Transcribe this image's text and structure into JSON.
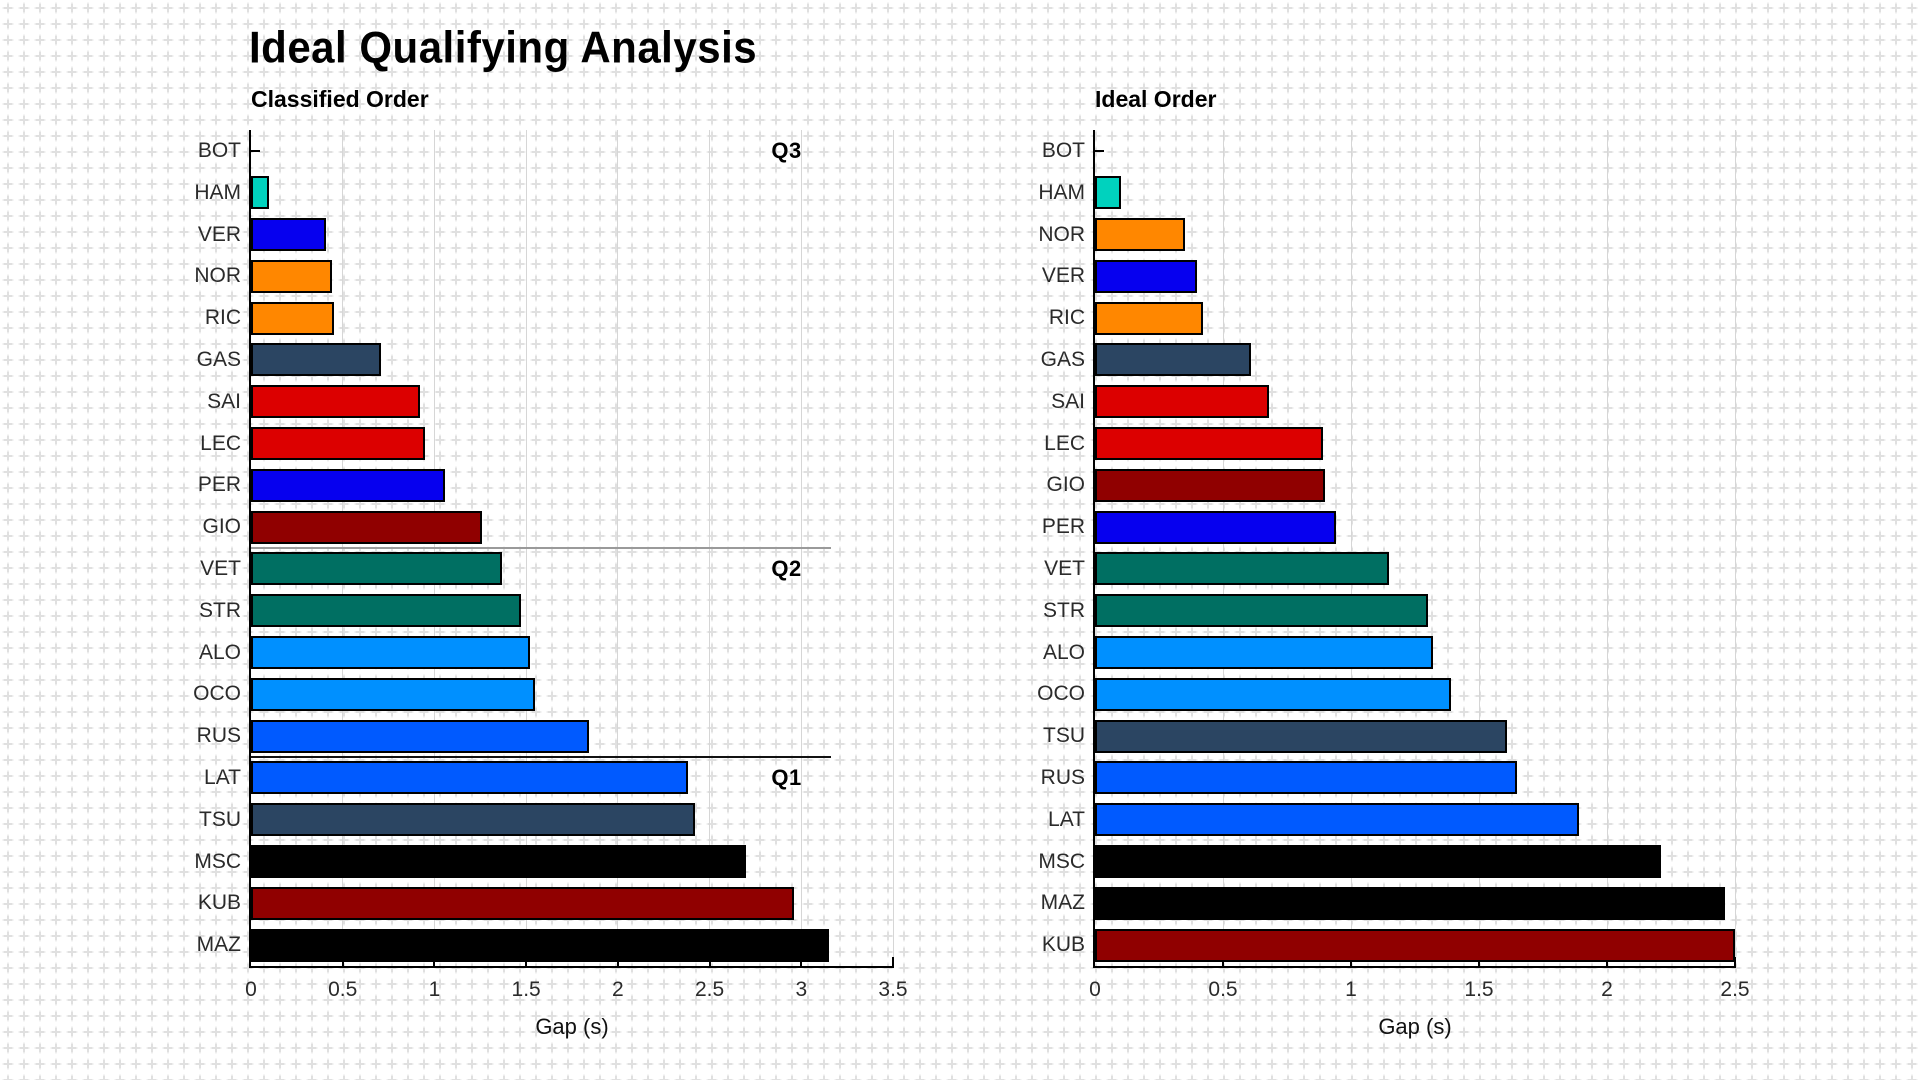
{
  "page": {
    "title": "Ideal Qualifying Analysis",
    "background_grid_color": "#e0e0e0"
  },
  "chart_data": [
    {
      "type": "bar",
      "orientation": "horizontal",
      "title": "Classified Order",
      "xlabel": "Gap (s)",
      "xlim": [
        0,
        3.5
      ],
      "xticks": [
        0,
        0.5,
        1,
        1.5,
        2,
        2.5,
        3,
        3.5
      ],
      "grid": true,
      "categories": [
        "BOT",
        "HAM",
        "VER",
        "NOR",
        "RIC",
        "GAS",
        "SAI",
        "LEC",
        "PER",
        "GIO",
        "VET",
        "STR",
        "ALO",
        "OCO",
        "RUS",
        "LAT",
        "TSU",
        "MSC",
        "KUB",
        "MAZ"
      ],
      "values": [
        0,
        0.1,
        0.41,
        0.44,
        0.45,
        0.71,
        0.92,
        0.95,
        1.06,
        1.26,
        1.37,
        1.47,
        1.52,
        1.55,
        1.84,
        2.38,
        2.42,
        2.7,
        2.96,
        3.15
      ],
      "bar_colors": [
        "#00D2BE",
        "#00D2BE",
        "#0600EF",
        "#FF8700",
        "#FF8700",
        "#2B4562",
        "#DC0000",
        "#DC0000",
        "#0600EF",
        "#900000",
        "#006F62",
        "#006F62",
        "#0090FF",
        "#0090FF",
        "#005AFF",
        "#005AFF",
        "#2B4562",
        "#000000",
        "#900000",
        "#000000"
      ],
      "bar_edge_color": "#000000",
      "cutoff_lines": [
        {
          "name": "q2-cutoff",
          "after_category": "GIO",
          "color": "#9a9a9a",
          "x_start": 0,
          "x_end": 3.16
        },
        {
          "name": "q1-cutoff",
          "after_category": "RUS",
          "color": "#111111",
          "x_start": 0,
          "x_end": 3.16
        }
      ],
      "annotations": [
        {
          "text": "Q3",
          "at_category": "BOT",
          "x": 2.92
        },
        {
          "text": "Q2",
          "at_category": "VET",
          "x": 2.92
        },
        {
          "text": "Q1",
          "at_category": "LAT",
          "x": 2.92
        }
      ]
    },
    {
      "type": "bar",
      "orientation": "horizontal",
      "title": "Ideal Order",
      "xlabel": "Gap (s)",
      "xlim": [
        0,
        2.5
      ],
      "xticks": [
        0,
        0.5,
        1,
        1.5,
        2,
        2.5
      ],
      "grid": true,
      "categories": [
        "BOT",
        "HAM",
        "NOR",
        "VER",
        "RIC",
        "GAS",
        "SAI",
        "LEC",
        "GIO",
        "PER",
        "VET",
        "STR",
        "ALO",
        "OCO",
        "TSU",
        "RUS",
        "LAT",
        "MSC",
        "MAZ",
        "KUB"
      ],
      "values": [
        0,
        0.1,
        0.35,
        0.4,
        0.42,
        0.61,
        0.68,
        0.89,
        0.9,
        0.94,
        1.15,
        1.3,
        1.32,
        1.39,
        1.61,
        1.65,
        1.89,
        2.21,
        2.46,
        2.5
      ],
      "bar_colors": [
        "#00D2BE",
        "#00D2BE",
        "#FF8700",
        "#0600EF",
        "#FF8700",
        "#2B4562",
        "#DC0000",
        "#DC0000",
        "#900000",
        "#0600EF",
        "#006F62",
        "#006F62",
        "#0090FF",
        "#0090FF",
        "#2B4562",
        "#005AFF",
        "#005AFF",
        "#000000",
        "#000000",
        "#900000"
      ],
      "bar_edge_color": "#000000",
      "cutoff_lines": [],
      "annotations": []
    }
  ]
}
